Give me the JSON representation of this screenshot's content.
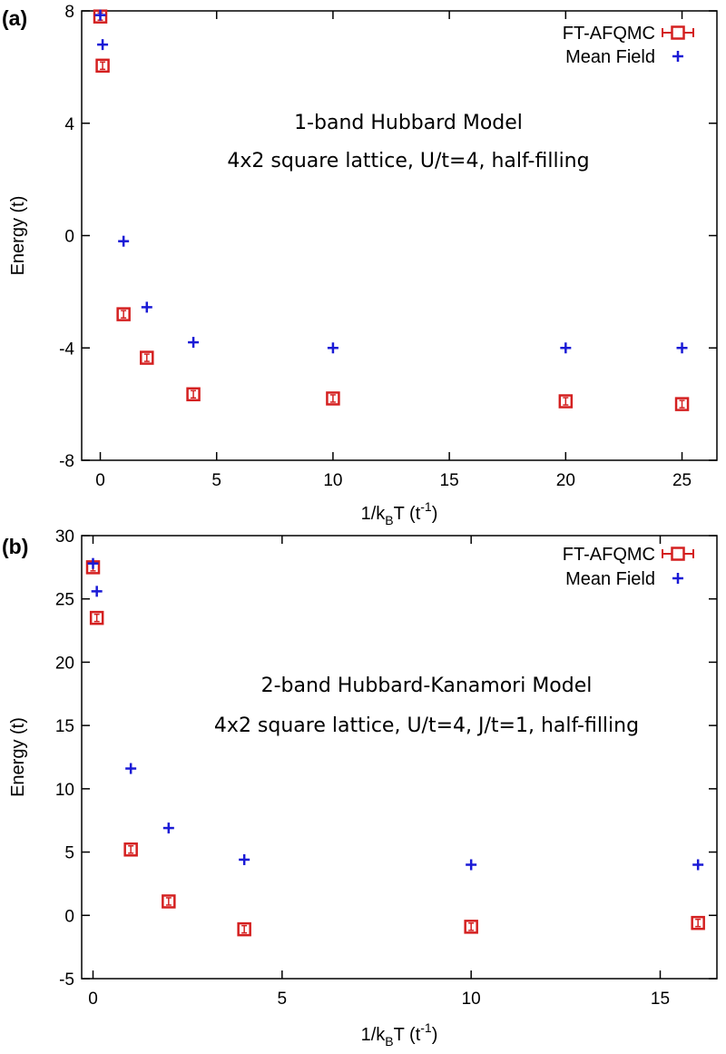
{
  "chart_data": [
    {
      "type": "scatter",
      "panel_label": "(a)",
      "xlabel": {
        "main": "1/k",
        "sub": "B",
        "mid": "T (t",
        "sup": "-1",
        "end": ")"
      },
      "ylabel": "Energy (t)",
      "xlim": [
        -0.8,
        26.5
      ],
      "ylim": [
        -8,
        8
      ],
      "xticks": [
        0,
        5,
        10,
        15,
        20,
        25
      ],
      "yticks": [
        -8,
        -4,
        0,
        4,
        8
      ],
      "annotation": [
        "1-band Hubbard Model",
        "4x2 square lattice, U/t=4, half-filling"
      ],
      "legend_position": "top-right",
      "series": [
        {
          "name": "FT-AFQMC",
          "color": "#d42020",
          "marker": "square-errorbar",
          "x": [
            0.0,
            0.1,
            1,
            2,
            4,
            10,
            20,
            25
          ],
          "y": [
            7.8,
            6.05,
            -2.8,
            -4.35,
            -5.65,
            -5.8,
            -5.9,
            -6.0
          ]
        },
        {
          "name": "Mean Field",
          "color": "#1a1ad6",
          "marker": "plus",
          "x": [
            0.0,
            0.1,
            1,
            2,
            4,
            10,
            20,
            25
          ],
          "y": [
            7.85,
            6.8,
            -0.2,
            -2.55,
            -3.8,
            -4.0,
            -4.0,
            -4.0
          ]
        }
      ]
    },
    {
      "type": "scatter",
      "panel_label": "(b)",
      "xlabel": {
        "main": "1/k",
        "sub": "B",
        "mid": "T (t",
        "sup": "-1",
        "end": ")"
      },
      "ylabel": "Energy (t)",
      "xlim": [
        -0.3,
        16.5
      ],
      "ylim": [
        -5,
        30
      ],
      "xticks": [
        0,
        5,
        10,
        15
      ],
      "yticks": [
        -5,
        0,
        5,
        10,
        15,
        20,
        25,
        30
      ],
      "annotation": [
        "2-band Hubbard-Kanamori Model",
        "4x2 square lattice, U/t=4, J/t=1, half-filling"
      ],
      "legend_position": "top-right",
      "series": [
        {
          "name": "FT-AFQMC",
          "color": "#d42020",
          "marker": "square-errorbar",
          "x": [
            0.0,
            0.1,
            1,
            2,
            4,
            10,
            16
          ],
          "y": [
            27.5,
            23.5,
            5.2,
            1.1,
            -1.1,
            -0.9,
            -0.6
          ]
        },
        {
          "name": "Mean Field",
          "color": "#1a1ad6",
          "marker": "plus",
          "x": [
            0.0,
            0.1,
            1,
            2,
            4,
            10,
            16
          ],
          "y": [
            27.8,
            25.6,
            11.6,
            6.9,
            4.4,
            4.0,
            4.0
          ]
        }
      ]
    }
  ]
}
